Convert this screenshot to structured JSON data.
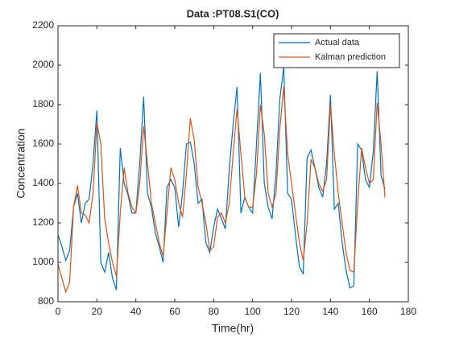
{
  "chart_data": {
    "type": "line",
    "title": "Data :PT08.S1(CO)",
    "xlabel": "Time(hr)",
    "ylabel": "Concentration",
    "x": [
      0,
      2,
      4,
      6,
      8,
      10,
      12,
      14,
      16,
      18,
      20,
      22,
      24,
      26,
      28,
      30,
      32,
      34,
      36,
      38,
      40,
      42,
      44,
      46,
      48,
      50,
      52,
      54,
      56,
      58,
      60,
      62,
      64,
      66,
      68,
      70,
      72,
      74,
      76,
      78,
      80,
      82,
      84,
      86,
      88,
      90,
      92,
      94,
      96,
      98,
      100,
      102,
      104,
      106,
      108,
      110,
      112,
      114,
      116,
      118,
      120,
      122,
      124,
      126,
      128,
      130,
      132,
      134,
      136,
      138,
      140,
      142,
      144,
      146,
      148,
      150,
      152,
      154,
      156,
      158,
      160,
      162,
      164,
      166,
      168
    ],
    "series": [
      {
        "name": "Actual data",
        "color": "#0072bd",
        "values": [
          1140,
          1080,
          1010,
          1060,
          1280,
          1350,
          1200,
          1300,
          1320,
          1500,
          1770,
          1000,
          950,
          1050,
          920,
          860,
          1580,
          1400,
          1340,
          1250,
          1250,
          1500,
          1840,
          1350,
          1280,
          1150,
          1080,
          1000,
          1380,
          1420,
          1380,
          1180,
          1350,
          1600,
          1610,
          1500,
          1300,
          1320,
          1100,
          1050,
          1180,
          1270,
          1220,
          1170,
          1470,
          1700,
          1890,
          1250,
          1330,
          1280,
          1250,
          1600,
          1960,
          1400,
          1280,
          1220,
          1450,
          1830,
          1990,
          1350,
          1320,
          1140,
          980,
          940,
          1530,
          1570,
          1480,
          1380,
          1330,
          1500,
          1850,
          1270,
          1300,
          1100,
          960,
          870,
          880,
          1600,
          1570,
          1420,
          1380,
          1560,
          1970,
          1440,
          1370
        ]
      },
      {
        "name": "Kalman prediction",
        "color": "#d95319",
        "values": [
          990,
          920,
          850,
          900,
          1280,
          1390,
          1250,
          1240,
          1200,
          1350,
          1710,
          1600,
          1220,
          1100,
          1000,
          930,
          1250,
          1480,
          1350,
          1280,
          1250,
          1400,
          1690,
          1500,
          1300,
          1200,
          1100,
          1030,
          1250,
          1480,
          1420,
          1300,
          1230,
          1450,
          1730,
          1620,
          1380,
          1300,
          1200,
          1060,
          1080,
          1230,
          1250,
          1200,
          1300,
          1550,
          1780,
          1550,
          1330,
          1280,
          1280,
          1450,
          1800,
          1650,
          1350,
          1280,
          1350,
          1680,
          1890,
          1550,
          1400,
          1250,
          1100,
          1010,
          1200,
          1520,
          1480,
          1400,
          1360,
          1420,
          1800,
          1550,
          1350,
          1200,
          1050,
          960,
          950,
          1300,
          1580,
          1480,
          1400,
          1420,
          1810,
          1600,
          1330
        ]
      }
    ],
    "xlim": [
      0,
      180
    ],
    "xticks": [
      0,
      20,
      40,
      60,
      80,
      100,
      120,
      140,
      160,
      180
    ],
    "ylim": [
      800,
      2200
    ],
    "yticks": [
      800,
      1000,
      1200,
      1400,
      1600,
      1800,
      2000,
      2200
    ],
    "legend": "upper right"
  }
}
